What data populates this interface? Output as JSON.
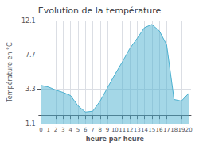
{
  "chart_data": {
    "type": "area",
    "title": "Evolution de la température",
    "xlabel": "heure par heure",
    "ylabel": "Température en °C",
    "x": [
      0,
      1,
      2,
      3,
      4,
      5,
      6,
      7,
      8,
      9,
      10,
      11,
      12,
      13,
      14,
      15,
      16,
      17,
      18,
      19,
      20
    ],
    "values": [
      3.8,
      3.6,
      3.2,
      2.9,
      2.5,
      1.2,
      0.4,
      0.5,
      1.8,
      3.5,
      5.2,
      6.8,
      8.5,
      9.8,
      11.2,
      11.6,
      10.8,
      9.0,
      2.0,
      1.8,
      2.8
    ],
    "color": "#4ab0d0",
    "xlim": [
      -0.3,
      20.3
    ],
    "xticks": [
      0,
      1,
      2,
      3,
      4,
      5,
      6,
      7,
      8,
      9,
      10,
      11,
      12,
      13,
      14,
      15,
      16,
      17,
      18,
      19,
      20
    ],
    "ylim": [
      -1.1,
      12.1
    ],
    "yticks": [
      -1.1,
      3.3,
      7.7,
      12.1
    ],
    "grid": true
  }
}
